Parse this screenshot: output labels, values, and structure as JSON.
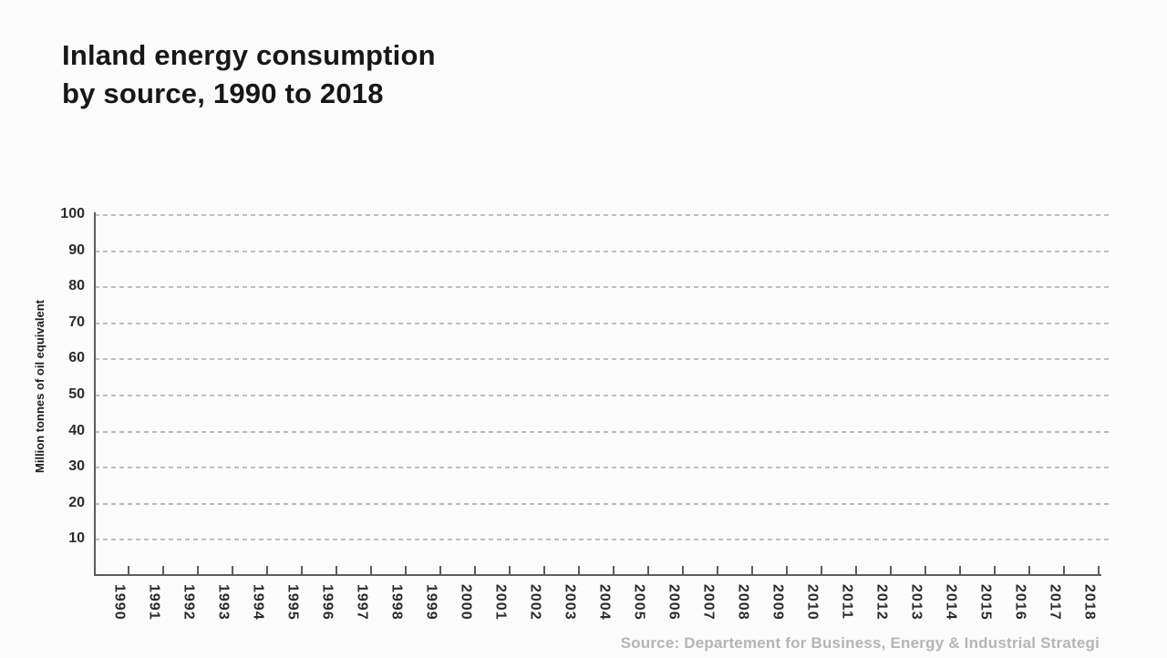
{
  "title": {
    "line1": "Inland energy consumption",
    "line2": "by source, 1990 to 2018"
  },
  "axes": {
    "y_label": "Million tonnes of oil equivalent",
    "y_ticks": [
      10,
      20,
      30,
      40,
      50,
      60,
      70,
      80,
      90,
      100
    ],
    "x_ticks": [
      "1990",
      "1991",
      "1992",
      "1993",
      "1994",
      "1995",
      "1996",
      "1997",
      "1998",
      "1999",
      "2000",
      "2001",
      "2002",
      "2003",
      "2004",
      "2005",
      "2006",
      "2007",
      "2008",
      "2009",
      "2010",
      "2011",
      "2012",
      "2013",
      "2014",
      "2015",
      "2016",
      "2017",
      "2018"
    ]
  },
  "source_note": "Source: Departement for Business, Energy & Industrial Strategi",
  "colors": {
    "background": "#fbfbfb",
    "axis_line": "#5d5d5d",
    "gridline": "#bdbdbd",
    "title_text": "#171717",
    "tick_text": "#2b2b2b",
    "source_text": "#b5b5b5"
  },
  "chart_data": {
    "type": "line",
    "title": "Inland energy consumption by source, 1990 to 2018",
    "xlabel": "",
    "ylabel": "Million tonnes of oil equivalent",
    "x": [
      "1990",
      "1991",
      "1992",
      "1993",
      "1994",
      "1995",
      "1996",
      "1997",
      "1998",
      "1999",
      "2000",
      "2001",
      "2002",
      "2003",
      "2004",
      "2005",
      "2006",
      "2007",
      "2008",
      "2009",
      "2010",
      "2011",
      "2012",
      "2013",
      "2014",
      "2015",
      "2016",
      "2017",
      "2018"
    ],
    "series": [],
    "ylim": [
      0,
      100
    ],
    "ytick_step": 10,
    "grid": "horizontal-dashed",
    "legend": "none",
    "note": "Empty axes frame - no data series plotted yet"
  }
}
